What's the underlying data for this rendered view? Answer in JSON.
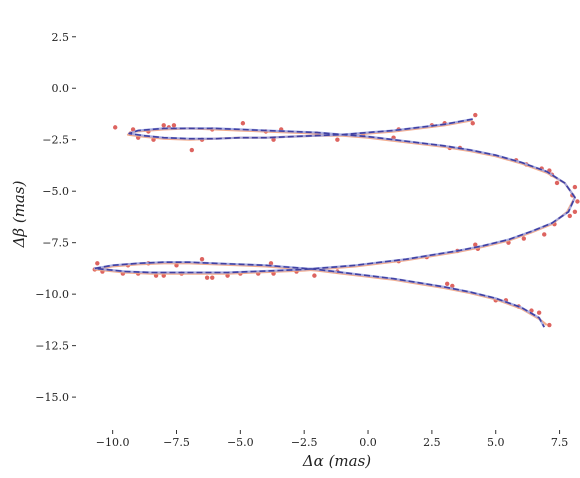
{
  "chart_data": {
    "type": "scatter",
    "title": "",
    "xlabel": "Δα (mas)",
    "ylabel": "Δβ (mas)",
    "xlim": [
      -11.2,
      8.3
    ],
    "ylim": [
      -16.5,
      3.8
    ],
    "x_ticks": [
      -10.0,
      -7.5,
      -5.0,
      -2.5,
      0.0,
      2.5,
      5.0,
      7.5
    ],
    "x_tick_labels": [
      "−10.0",
      "−7.5",
      "−5.0",
      "−2.5",
      "0.0",
      "2.5",
      "5.0",
      "7.5"
    ],
    "y_ticks": [
      2.5,
      0.0,
      -2.5,
      -5.0,
      -7.5,
      -10.0,
      -12.5,
      -15.0
    ],
    "y_tick_labels": [
      "2.5",
      "0.0",
      "−2.5",
      "−5.0",
      "−7.5",
      "−10.0",
      "−12.5",
      "−15.0"
    ],
    "grid": false,
    "series": [
      {
        "kind": "points",
        "color": "#d9534f",
        "points": [
          [
            4.2,
            -1.3
          ],
          [
            4.1,
            -1.7
          ],
          [
            3.0,
            -1.7
          ],
          [
            2.5,
            -1.8
          ],
          [
            1.2,
            -2.0
          ],
          [
            -1.2,
            -2.5
          ],
          [
            -2.0,
            -2.2
          ],
          [
            -3.4,
            -2.0
          ],
          [
            -3.7,
            -2.5
          ],
          [
            -4.0,
            -2.1
          ],
          [
            -4.9,
            -1.7
          ],
          [
            -6.1,
            -2.0
          ],
          [
            -6.5,
            -2.5
          ],
          [
            -6.9,
            -3.0
          ],
          [
            -7.6,
            -1.8
          ],
          [
            -7.8,
            -1.9
          ],
          [
            -8.0,
            -1.8
          ],
          [
            -8.4,
            -2.5
          ],
          [
            -8.6,
            -2.1
          ],
          [
            -9.0,
            -2.4
          ],
          [
            -9.2,
            -2.0
          ],
          [
            -9.3,
            -2.2
          ],
          [
            -9.9,
            -1.9
          ],
          [
            1.0,
            -2.4
          ],
          [
            -0.2,
            -2.3
          ],
          [
            3.2,
            -2.9
          ],
          [
            3.6,
            -2.9
          ],
          [
            5.8,
            -3.5
          ],
          [
            6.2,
            -3.7
          ],
          [
            6.8,
            -3.9
          ],
          [
            7.1,
            -4.0
          ],
          [
            7.2,
            -4.2
          ],
          [
            7.4,
            -4.6
          ],
          [
            8.1,
            -4.8
          ],
          [
            8.0,
            -5.2
          ],
          [
            8.2,
            -5.5
          ],
          [
            8.1,
            -6.0
          ],
          [
            7.9,
            -6.2
          ],
          [
            7.3,
            -6.6
          ],
          [
            6.9,
            -7.1
          ],
          [
            6.1,
            -7.3
          ],
          [
            5.5,
            -7.5
          ],
          [
            4.2,
            -7.6
          ],
          [
            4.3,
            -7.8
          ],
          [
            3.5,
            -7.9
          ],
          [
            2.3,
            -8.2
          ],
          [
            1.2,
            -8.4
          ],
          [
            -1.2,
            -8.9
          ],
          [
            -2.1,
            -9.1
          ],
          [
            -2.8,
            -8.9
          ],
          [
            -3.8,
            -8.5
          ],
          [
            -3.7,
            -9.0
          ],
          [
            -4.3,
            -9.0
          ],
          [
            -5.0,
            -9.0
          ],
          [
            -5.5,
            -9.1
          ],
          [
            -6.1,
            -9.2
          ],
          [
            -6.3,
            -9.2
          ],
          [
            -6.5,
            -8.3
          ],
          [
            -7.3,
            -9.0
          ],
          [
            -7.5,
            -8.6
          ],
          [
            -8.0,
            -9.1
          ],
          [
            -8.3,
            -9.1
          ],
          [
            -8.6,
            -8.5
          ],
          [
            -9.0,
            -9.0
          ],
          [
            -9.4,
            -8.6
          ],
          [
            -9.6,
            -9.0
          ],
          [
            -10.4,
            -8.9
          ],
          [
            -10.6,
            -8.5
          ],
          [
            -10.7,
            -8.8
          ],
          [
            3.1,
            -9.5
          ],
          [
            3.3,
            -9.6
          ],
          [
            5.0,
            -10.3
          ],
          [
            5.4,
            -10.3
          ],
          [
            5.9,
            -10.6
          ],
          [
            6.4,
            -10.8
          ],
          [
            6.7,
            -10.9
          ],
          [
            7.1,
            -11.5
          ]
        ]
      },
      {
        "kind": "line",
        "color": "#f2a07b",
        "points": [
          [
            4.1,
            -1.55
          ],
          [
            3.0,
            -1.8
          ],
          [
            2.0,
            -1.95
          ],
          [
            1.0,
            -2.1
          ],
          [
            0.0,
            -2.2
          ],
          [
            -1.0,
            -2.3
          ],
          [
            -2.0,
            -2.3
          ],
          [
            -3.0,
            -2.35
          ],
          [
            -4.0,
            -2.4
          ],
          [
            -5.0,
            -2.4
          ],
          [
            -6.0,
            -2.45
          ],
          [
            -7.0,
            -2.5
          ],
          [
            -8.0,
            -2.45
          ],
          [
            -8.8,
            -2.35
          ],
          [
            -9.4,
            -2.25
          ],
          [
            -9.1,
            -2.1
          ],
          [
            -8.0,
            -2.0
          ],
          [
            -7.0,
            -1.95
          ],
          [
            -6.0,
            -2.0
          ],
          [
            -5.0,
            -2.05
          ],
          [
            -4.0,
            -2.1
          ],
          [
            -3.0,
            -2.15
          ],
          [
            -2.0,
            -2.2
          ],
          [
            -1.0,
            -2.3
          ],
          [
            0.0,
            -2.4
          ],
          [
            1.0,
            -2.55
          ],
          [
            2.0,
            -2.7
          ],
          [
            3.0,
            -2.85
          ],
          [
            4.0,
            -3.05
          ],
          [
            5.0,
            -3.3
          ],
          [
            6.0,
            -3.65
          ],
          [
            7.0,
            -4.1
          ],
          [
            7.7,
            -4.6
          ],
          [
            8.1,
            -5.3
          ],
          [
            7.8,
            -6.0
          ],
          [
            7.2,
            -6.6
          ],
          [
            6.4,
            -7.0
          ],
          [
            5.5,
            -7.4
          ],
          [
            4.5,
            -7.7
          ],
          [
            3.5,
            -7.95
          ],
          [
            2.5,
            -8.15
          ],
          [
            1.5,
            -8.35
          ],
          [
            0.5,
            -8.5
          ],
          [
            -0.5,
            -8.65
          ],
          [
            -1.5,
            -8.75
          ],
          [
            -2.5,
            -8.85
          ],
          [
            -3.5,
            -8.9
          ],
          [
            -4.5,
            -8.95
          ],
          [
            -5.5,
            -9.0
          ],
          [
            -6.5,
            -9.0
          ],
          [
            -7.5,
            -9.0
          ],
          [
            -8.5,
            -9.0
          ],
          [
            -9.5,
            -8.95
          ],
          [
            -10.7,
            -8.8
          ],
          [
            -10.0,
            -8.65
          ],
          [
            -9.0,
            -8.55
          ],
          [
            -8.0,
            -8.5
          ],
          [
            -7.0,
            -8.5
          ],
          [
            -6.0,
            -8.55
          ],
          [
            -5.0,
            -8.6
          ],
          [
            -4.0,
            -8.65
          ],
          [
            -3.0,
            -8.75
          ],
          [
            -2.0,
            -8.85
          ],
          [
            -1.0,
            -9.0
          ],
          [
            0.0,
            -9.15
          ],
          [
            1.0,
            -9.3
          ],
          [
            2.0,
            -9.5
          ],
          [
            3.0,
            -9.7
          ],
          [
            4.0,
            -9.95
          ],
          [
            5.0,
            -10.25
          ],
          [
            6.0,
            -10.7
          ],
          [
            6.7,
            -11.2
          ],
          [
            7.0,
            -11.5
          ]
        ]
      },
      {
        "kind": "line",
        "color": "#9aa6e6",
        "points": [
          [
            4.1,
            -1.5
          ],
          [
            3.0,
            -1.75
          ],
          [
            2.0,
            -1.9
          ],
          [
            1.0,
            -2.05
          ],
          [
            0.0,
            -2.15
          ],
          [
            -1.0,
            -2.25
          ],
          [
            -2.0,
            -2.3
          ],
          [
            -3.0,
            -2.35
          ],
          [
            -4.0,
            -2.4
          ],
          [
            -5.0,
            -2.4
          ],
          [
            -6.0,
            -2.45
          ],
          [
            -7.0,
            -2.45
          ],
          [
            -8.0,
            -2.4
          ],
          [
            -8.8,
            -2.3
          ],
          [
            -9.35,
            -2.2
          ],
          [
            -9.0,
            -2.05
          ],
          [
            -8.0,
            -1.95
          ],
          [
            -7.0,
            -1.95
          ],
          [
            -6.0,
            -1.95
          ],
          [
            -5.0,
            -2.0
          ],
          [
            -4.0,
            -2.05
          ],
          [
            -3.0,
            -2.1
          ],
          [
            -2.0,
            -2.15
          ],
          [
            -1.0,
            -2.25
          ],
          [
            0.0,
            -2.35
          ],
          [
            1.0,
            -2.5
          ],
          [
            2.0,
            -2.65
          ],
          [
            3.0,
            -2.8
          ],
          [
            4.0,
            -3.0
          ],
          [
            5.0,
            -3.25
          ],
          [
            6.0,
            -3.6
          ],
          [
            7.0,
            -4.05
          ],
          [
            7.7,
            -4.6
          ],
          [
            8.1,
            -5.3
          ],
          [
            7.85,
            -6.0
          ],
          [
            7.2,
            -6.55
          ],
          [
            6.4,
            -6.95
          ],
          [
            5.5,
            -7.35
          ],
          [
            4.5,
            -7.65
          ],
          [
            3.5,
            -7.9
          ],
          [
            2.5,
            -8.1
          ],
          [
            1.5,
            -8.3
          ],
          [
            0.5,
            -8.45
          ],
          [
            -0.5,
            -8.6
          ],
          [
            -1.5,
            -8.7
          ],
          [
            -2.5,
            -8.8
          ],
          [
            -3.5,
            -8.85
          ],
          [
            -4.5,
            -8.9
          ],
          [
            -5.5,
            -8.95
          ],
          [
            -6.5,
            -8.95
          ],
          [
            -7.5,
            -8.95
          ],
          [
            -8.5,
            -8.95
          ],
          [
            -9.5,
            -8.9
          ],
          [
            -10.7,
            -8.75
          ],
          [
            -10.0,
            -8.6
          ],
          [
            -9.0,
            -8.5
          ],
          [
            -8.0,
            -8.45
          ],
          [
            -7.0,
            -8.45
          ],
          [
            -6.0,
            -8.5
          ],
          [
            -5.0,
            -8.55
          ],
          [
            -4.0,
            -8.6
          ],
          [
            -3.0,
            -8.7
          ],
          [
            -2.0,
            -8.8
          ],
          [
            -1.0,
            -8.95
          ],
          [
            0.0,
            -9.1
          ],
          [
            1.0,
            -9.25
          ],
          [
            2.0,
            -9.45
          ],
          [
            3.0,
            -9.65
          ],
          [
            4.0,
            -9.9
          ],
          [
            5.0,
            -10.2
          ],
          [
            6.0,
            -10.65
          ],
          [
            6.7,
            -11.15
          ],
          [
            6.9,
            -11.6
          ]
        ]
      },
      {
        "kind": "line",
        "color": "#3b3b9e",
        "dashed": true,
        "points": [
          [
            4.1,
            -1.5
          ],
          [
            3.0,
            -1.75
          ],
          [
            2.0,
            -1.9
          ],
          [
            1.0,
            -2.05
          ],
          [
            0.0,
            -2.15
          ],
          [
            -1.0,
            -2.25
          ],
          [
            -2.0,
            -2.3
          ],
          [
            -3.0,
            -2.35
          ],
          [
            -4.0,
            -2.4
          ],
          [
            -5.0,
            -2.4
          ],
          [
            -6.0,
            -2.45
          ],
          [
            -7.0,
            -2.45
          ],
          [
            -8.0,
            -2.4
          ],
          [
            -8.8,
            -2.3
          ],
          [
            -9.35,
            -2.2
          ],
          [
            -9.0,
            -2.05
          ],
          [
            -8.0,
            -1.95
          ],
          [
            -7.0,
            -1.95
          ],
          [
            -6.0,
            -1.95
          ],
          [
            -5.0,
            -2.0
          ],
          [
            -4.0,
            -2.05
          ],
          [
            -3.0,
            -2.1
          ],
          [
            -2.0,
            -2.15
          ],
          [
            -1.0,
            -2.25
          ],
          [
            0.0,
            -2.35
          ],
          [
            1.0,
            -2.5
          ],
          [
            2.0,
            -2.65
          ],
          [
            3.0,
            -2.8
          ],
          [
            4.0,
            -3.0
          ],
          [
            5.0,
            -3.25
          ],
          [
            6.0,
            -3.6
          ],
          [
            7.0,
            -4.05
          ],
          [
            7.7,
            -4.6
          ],
          [
            8.1,
            -5.3
          ],
          [
            7.85,
            -6.0
          ],
          [
            7.2,
            -6.55
          ],
          [
            6.4,
            -6.95
          ],
          [
            5.5,
            -7.35
          ],
          [
            4.5,
            -7.65
          ],
          [
            3.5,
            -7.9
          ],
          [
            2.5,
            -8.1
          ],
          [
            1.5,
            -8.3
          ],
          [
            0.5,
            -8.45
          ],
          [
            -0.5,
            -8.6
          ],
          [
            -1.5,
            -8.7
          ],
          [
            -2.5,
            -8.8
          ],
          [
            -3.5,
            -8.85
          ],
          [
            -4.5,
            -8.9
          ],
          [
            -5.5,
            -8.95
          ],
          [
            -6.5,
            -8.95
          ],
          [
            -7.5,
            -8.95
          ],
          [
            -8.5,
            -8.95
          ],
          [
            -9.5,
            -8.9
          ],
          [
            -10.7,
            -8.75
          ],
          [
            -10.0,
            -8.6
          ],
          [
            -9.0,
            -8.5
          ],
          [
            -8.0,
            -8.45
          ],
          [
            -7.0,
            -8.45
          ],
          [
            -6.0,
            -8.5
          ],
          [
            -5.0,
            -8.55
          ],
          [
            -4.0,
            -8.6
          ],
          [
            -3.0,
            -8.7
          ],
          [
            -2.0,
            -8.8
          ],
          [
            -1.0,
            -8.95
          ],
          [
            0.0,
            -9.1
          ],
          [
            1.0,
            -9.25
          ],
          [
            2.0,
            -9.45
          ],
          [
            3.0,
            -9.65
          ],
          [
            4.0,
            -9.9
          ],
          [
            5.0,
            -10.2
          ],
          [
            6.0,
            -10.65
          ],
          [
            6.7,
            -11.15
          ],
          [
            6.9,
            -11.6
          ]
        ]
      }
    ]
  }
}
